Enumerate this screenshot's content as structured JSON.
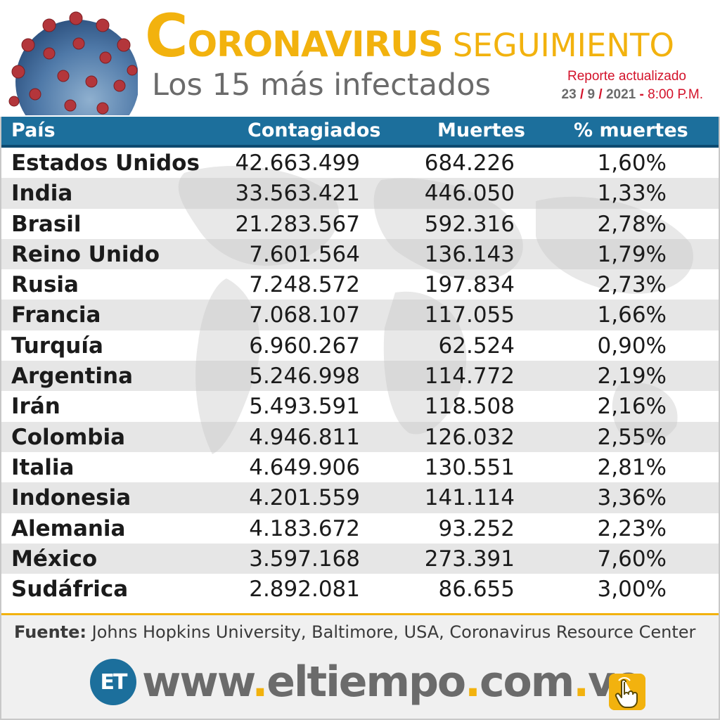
{
  "header": {
    "title_cap": "C",
    "title_rest": "ORONAVIRUS",
    "title_seg": "SEGUIMIENTO",
    "subtitle": "Los 15 más infectados",
    "report_label": "Reporte actualizado",
    "report_day": "23",
    "report_month": "9",
    "report_year": "2021",
    "report_time": "8:00 P.M."
  },
  "table": {
    "headers": [
      "País",
      "Contagiados",
      "Muertes",
      "% muertes"
    ],
    "rows": [
      {
        "country": "Estados Unidos",
        "cases": "42.663.499",
        "deaths": "684.226",
        "pct": "1,60%"
      },
      {
        "country": "India",
        "cases": "33.563.421",
        "deaths": "446.050",
        "pct": "1,33%"
      },
      {
        "country": "Brasil",
        "cases": "21.283.567",
        "deaths": "592.316",
        "pct": "2,78%"
      },
      {
        "country": "Reino Unido",
        "cases": "7.601.564",
        "deaths": "136.143",
        "pct": "1,79%"
      },
      {
        "country": "Rusia",
        "cases": "7.248.572",
        "deaths": "197.834",
        "pct": "2,73%"
      },
      {
        "country": "Francia",
        "cases": "7.068.107",
        "deaths": "117.055",
        "pct": "1,66%"
      },
      {
        "country": "Turquía",
        "cases": "6.960.267",
        "deaths": "62.524",
        "pct": "0,90%"
      },
      {
        "country": "Argentina",
        "cases": "5.246.998",
        "deaths": "114.772",
        "pct": "2,19%"
      },
      {
        "country": "Irán",
        "cases": "5.493.591",
        "deaths": "118.508",
        "pct": "2,16%"
      },
      {
        "country": "Colombia",
        "cases": "4.946.811",
        "deaths": "126.032",
        "pct": "2,55%"
      },
      {
        "country": "Italia",
        "cases": "4.649.906",
        "deaths": "130.551",
        "pct": "2,81%"
      },
      {
        "country": "Indonesia",
        "cases": "4.201.559",
        "deaths": "141.114",
        "pct": "3,36%"
      },
      {
        "country": "Alemania",
        "cases": "4.183.672",
        "deaths": "93.252",
        "pct": "2,23%"
      },
      {
        "country": "México",
        "cases": "3.597.168",
        "deaths": "273.391",
        "pct": "7,60%"
      },
      {
        "country": "Sudáfrica",
        "cases": "2.892.081",
        "deaths": "86.655",
        "pct": "3,00%"
      }
    ]
  },
  "footer": {
    "source_label": "Fuente:",
    "source_text": "Johns Hopkins University, Baltimore, USA, Coronavirus Resource Center",
    "logo_text": "ET",
    "url_www": "www",
    "url_name": "eltiempo",
    "url_com": "com",
    "url_ve": "ve",
    "url_dot": "."
  },
  "colors": {
    "accent_yellow": "#f2b20e",
    "header_blue": "#1c6f9c",
    "report_red": "#d3122a",
    "text_gray": "#6b6b6b"
  },
  "icons": [
    "coronavirus-icon",
    "world-map-background",
    "et-logo",
    "tap-hand-icon"
  ]
}
